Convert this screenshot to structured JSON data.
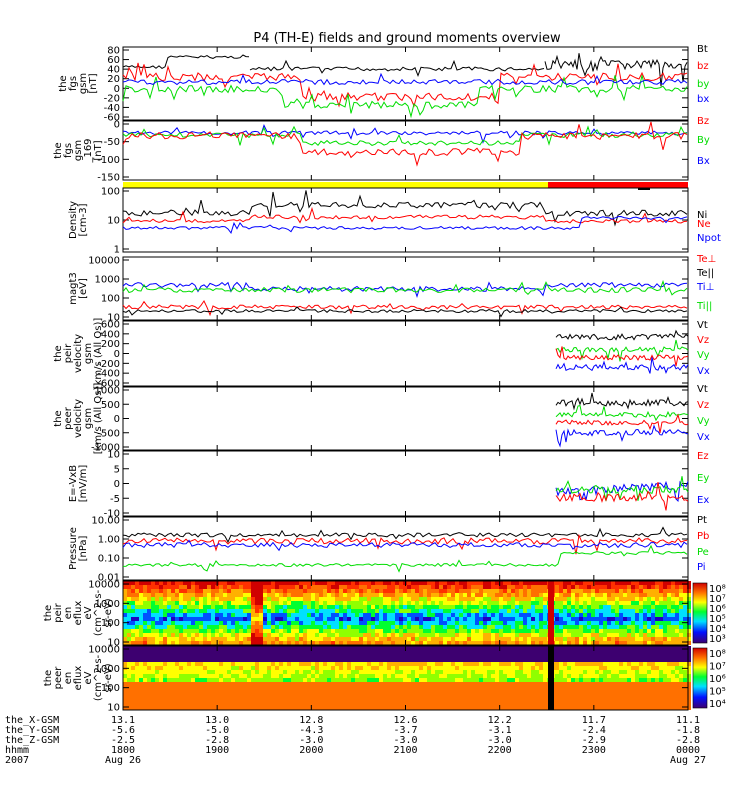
{
  "title": "P4 (TH-E) fields and ground moments overview",
  "colors": {
    "black": "#000000",
    "red": "#ff0000",
    "green": "#00dd00",
    "blue": "#0000ff",
    "yellow": "#ffff00",
    "orange": "#ff8000"
  },
  "chart_data": {
    "type": "line",
    "x_ticks": [
      {
        "hhmm": "1800",
        "date": "Aug 26",
        "x_gsm": "13.1",
        "y_gsm": "-5.6",
        "z_gsm": "-2.5"
      },
      {
        "hhmm": "1900",
        "date": "",
        "x_gsm": "13.0",
        "y_gsm": "-5.0",
        "z_gsm": "-2.8"
      },
      {
        "hhmm": "2000",
        "date": "",
        "x_gsm": "12.8",
        "y_gsm": "-4.3",
        "z_gsm": "-3.0"
      },
      {
        "hhmm": "2100",
        "date": "",
        "x_gsm": "12.6",
        "y_gsm": "-3.7",
        "z_gsm": "-3.0"
      },
      {
        "hhmm": "2200",
        "date": "",
        "x_gsm": "12.2",
        "y_gsm": "-3.1",
        "z_gsm": "-3.0"
      },
      {
        "hhmm": "2300",
        "date": "",
        "x_gsm": "11.7",
        "y_gsm": "-2.4",
        "z_gsm": "-2.9"
      },
      {
        "hhmm": "0000",
        "date": "Aug 27",
        "x_gsm": "11.1",
        "y_gsm": "-1.8",
        "z_gsm": "-2.8"
      }
    ],
    "footer_labels": [
      "the_X-GSM",
      "the_Y-GSM",
      "the_Z-GSM",
      "hhmm",
      "2007"
    ],
    "panels": [
      {
        "id": "fgs",
        "ylabel": [
          "the",
          "fgs",
          "gsm",
          "[nT]"
        ],
        "yticks": [
          "80",
          "60",
          "40",
          "20",
          "0",
          "-20",
          "-40",
          "-60"
        ],
        "legend": [
          {
            "name": "Bt",
            "color": "#000000"
          },
          {
            "name": "bz",
            "color": "#ff0000"
          },
          {
            "name": "by",
            "color": "#00dd00"
          },
          {
            "name": "bx",
            "color": "#0000ff"
          }
        ]
      },
      {
        "id": "fgl",
        "ylabel": [
          "the",
          "fgs",
          "gsm",
          "_169",
          "[nT]"
        ],
        "yticks": [
          "0",
          "-50",
          "-100",
          "-150"
        ],
        "legend": [
          {
            "name": "Bz",
            "color": "#ff0000"
          },
          {
            "name": "By",
            "color": "#00dd00"
          },
          {
            "name": "Bx",
            "color": "#0000ff"
          }
        ]
      },
      {
        "id": "density",
        "ylabel": [
          "Density",
          "[cm-3]"
        ],
        "yticks": [
          "100",
          "10",
          "1"
        ],
        "legend": [
          {
            "name": "Ne",
            "color": "#ff0000"
          },
          {
            "name": "Ni",
            "color": "#000000"
          },
          {
            "name": "Npot",
            "color": "#0000ff"
          }
        ]
      },
      {
        "id": "temp",
        "ylabel": [
          "magt3",
          "[eV]"
        ],
        "yticks": [
          "10000",
          "1000",
          "100",
          "10"
        ],
        "legend": [
          {
            "name": "Te⊥",
            "color": "#ff0000"
          },
          {
            "name": "Te||",
            "color": "#000000"
          },
          {
            "name": "Ti⊥",
            "color": "#0000ff"
          },
          {
            "name": "Ti||",
            "color": "#00dd00"
          }
        ]
      },
      {
        "id": "peir_vel",
        "ylabel": [
          "the",
          "peir",
          "velocity",
          "gsm",
          "[km/s (All Qs)]"
        ],
        "yticks": [
          "600",
          "400",
          "200",
          "0",
          "-200",
          "-400",
          "-600"
        ],
        "legend": [
          {
            "name": "Vt",
            "color": "#000000"
          },
          {
            "name": "Vz",
            "color": "#ff0000"
          },
          {
            "name": "Vy",
            "color": "#00dd00"
          },
          {
            "name": "Vx",
            "color": "#0000ff"
          }
        ]
      },
      {
        "id": "peer_vel",
        "ylabel": [
          "the",
          "peer",
          "velocity",
          "gsm",
          "[km/s (All Qs)]"
        ],
        "yticks": [
          "1000",
          "500",
          "0",
          "-500",
          "-1000"
        ],
        "legend": [
          {
            "name": "Vt",
            "color": "#000000"
          },
          {
            "name": "Vz",
            "color": "#ff0000"
          },
          {
            "name": "Vy",
            "color": "#00dd00"
          },
          {
            "name": "Vx",
            "color": "#0000ff"
          }
        ]
      },
      {
        "id": "efield",
        "ylabel": [
          "E=-VxB",
          "[mV/m]"
        ],
        "yticks": [
          "10",
          "5",
          "0",
          "-5",
          "-10"
        ],
        "legend": [
          {
            "name": "Ez",
            "color": "#ff0000"
          },
          {
            "name": "Ey",
            "color": "#00dd00"
          },
          {
            "name": "Ex",
            "color": "#0000ff"
          }
        ]
      },
      {
        "id": "pressure",
        "ylabel": [
          "Pressure",
          "[nPa]"
        ],
        "yticks": [
          "10.00",
          "1.00",
          "0.10",
          "0.01"
        ],
        "legend": [
          {
            "name": "Pt",
            "color": "#000000"
          },
          {
            "name": "Pb",
            "color": "#ff0000"
          },
          {
            "name": "Pe",
            "color": "#00dd00"
          },
          {
            "name": "Pi",
            "color": "#0000ff"
          }
        ]
      },
      {
        "id": "ion_spec",
        "ylabel": [
          "the",
          "peir",
          "en",
          "eflux",
          "eV",
          "(cm^2-s-",
          "sr-eV)"
        ],
        "yticks": [
          "10000",
          "1000",
          "100",
          "10"
        ],
        "colorbar": [
          "10⁸",
          "10⁷",
          "10⁶",
          "10⁵",
          "10⁴",
          "10³"
        ]
      },
      {
        "id": "elec_spec",
        "ylabel": [
          "the",
          "peer",
          "en",
          "eflux",
          "eV",
          "(cm^2-s-",
          "sr-eV)"
        ],
        "yticks": [
          "10000",
          "1000",
          "100",
          "10"
        ],
        "colorbar": [
          "10⁸",
          "10⁷",
          "10⁶",
          "10⁵",
          "10⁴"
        ]
      }
    ]
  }
}
